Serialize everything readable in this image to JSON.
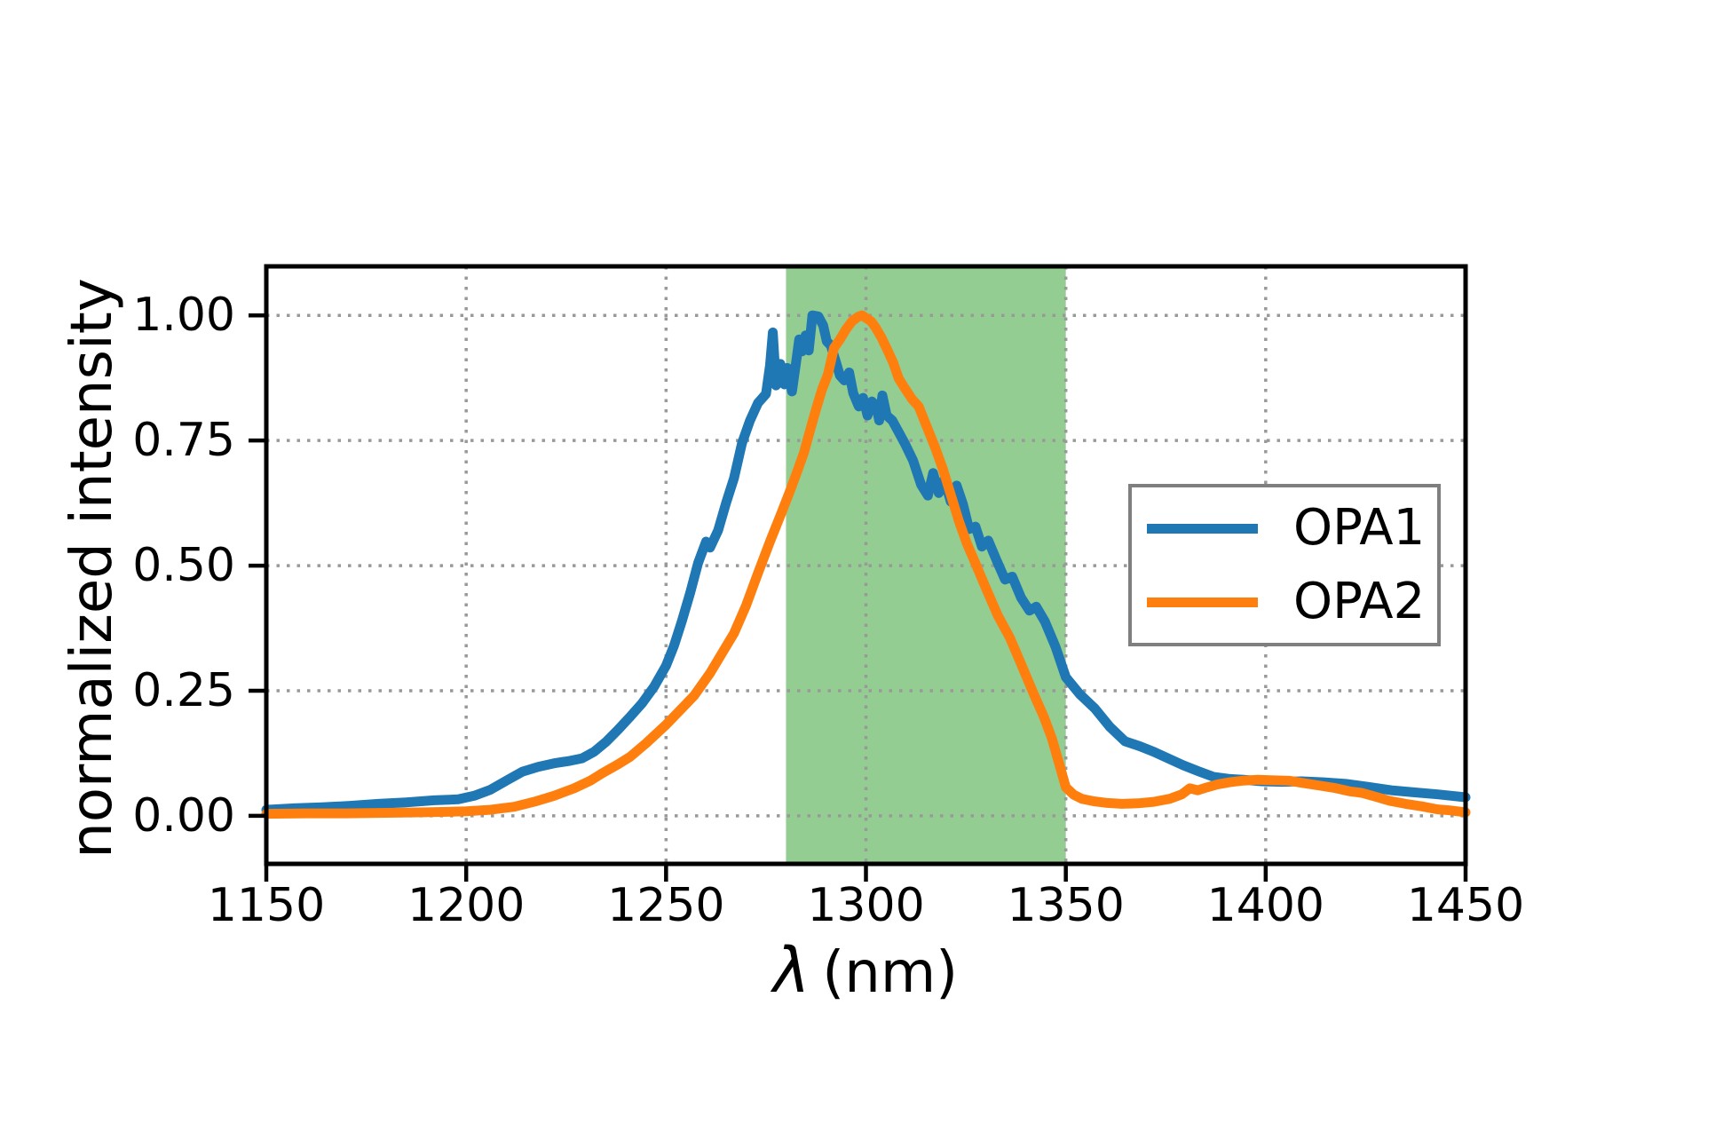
{
  "axes": {
    "xlabel_lambda": "λ",
    "xlabel_unit": "(nm)",
    "xticks": [
      1150,
      1200,
      1250,
      1300,
      1350,
      1400,
      1450
    ],
    "xtick_labels": [
      "1150",
      "1200",
      "1250",
      "1300",
      "1350",
      "1400",
      "1450"
    ],
    "yticks": [
      0,
      0.25,
      0.5,
      0.75,
      1.0
    ],
    "ytick_labels": [
      "0.00",
      "0.25",
      "0.50",
      "0.75",
      "1.00"
    ],
    "spine_color": "#000000",
    "grid_color": "#999999"
  },
  "chart_data": {
    "type": "line",
    "title": "",
    "xlabel": "λ (nm)",
    "ylabel": "normalized intensity",
    "xlim": [
      1150,
      1450
    ],
    "ylim_display": [
      -0.096,
      1.098
    ],
    "grid": "dotted",
    "legend": {
      "position": "center right",
      "entries": [
        "OPA1",
        "OPA2"
      ]
    },
    "shaded_region": {
      "x0": 1280,
      "x1": 1350,
      "color": "#93cd92"
    },
    "series": [
      {
        "name": "OPA1",
        "color": "#1f77b4",
        "points": [
          [
            1150,
            0.012
          ],
          [
            1157,
            0.015
          ],
          [
            1164,
            0.017
          ],
          [
            1171,
            0.02
          ],
          [
            1178,
            0.024
          ],
          [
            1185,
            0.027
          ],
          [
            1192,
            0.031
          ],
          [
            1198,
            0.033
          ],
          [
            1202,
            0.04
          ],
          [
            1206,
            0.052
          ],
          [
            1210,
            0.07
          ],
          [
            1214,
            0.088
          ],
          [
            1218,
            0.098
          ],
          [
            1222,
            0.105
          ],
          [
            1226,
            0.11
          ],
          [
            1229,
            0.115
          ],
          [
            1232,
            0.128
          ],
          [
            1235,
            0.148
          ],
          [
            1238,
            0.172
          ],
          [
            1241,
            0.198
          ],
          [
            1244,
            0.225
          ],
          [
            1247,
            0.258
          ],
          [
            1250,
            0.3
          ],
          [
            1252,
            0.34
          ],
          [
            1254,
            0.39
          ],
          [
            1256,
            0.445
          ],
          [
            1258,
            0.505
          ],
          [
            1260,
            0.548
          ],
          [
            1261,
            0.536
          ],
          [
            1263,
            0.57
          ],
          [
            1265,
            0.625
          ],
          [
            1267,
            0.675
          ],
          [
            1269,
            0.745
          ],
          [
            1271,
            0.79
          ],
          [
            1273,
            0.825
          ],
          [
            1275,
            0.843
          ],
          [
            1276,
            0.9
          ],
          [
            1276.7,
            0.966
          ],
          [
            1277.5,
            0.86
          ],
          [
            1278.6,
            0.903
          ],
          [
            1279.6,
            0.862
          ],
          [
            1280.3,
            0.895
          ],
          [
            1281.5,
            0.848
          ],
          [
            1282.5,
            0.905
          ],
          [
            1283.3,
            0.952
          ],
          [
            1284,
            0.928
          ],
          [
            1284.9,
            0.96
          ],
          [
            1285.7,
            0.93
          ],
          [
            1286.6,
            1.0
          ],
          [
            1288.1,
            0.998
          ],
          [
            1289.3,
            0.98
          ],
          [
            1290.2,
            0.948
          ],
          [
            1291.2,
            0.94
          ],
          [
            1292.3,
            0.912
          ],
          [
            1293.5,
            0.88
          ],
          [
            1294.6,
            0.87
          ],
          [
            1295.8,
            0.886
          ],
          [
            1296.8,
            0.845
          ],
          [
            1298.2,
            0.818
          ],
          [
            1299.3,
            0.835
          ],
          [
            1300.4,
            0.8
          ],
          [
            1301.5,
            0.828
          ],
          [
            1302.6,
            0.818
          ],
          [
            1303.3,
            0.79
          ],
          [
            1304.1,
            0.84
          ],
          [
            1305.2,
            0.8
          ],
          [
            1306.6,
            0.79
          ],
          [
            1308.1,
            0.768
          ],
          [
            1309.8,
            0.743
          ],
          [
            1311.8,
            0.71
          ],
          [
            1313.8,
            0.662
          ],
          [
            1315.5,
            0.64
          ],
          [
            1316.8,
            0.685
          ],
          [
            1318.2,
            0.645
          ],
          [
            1319.6,
            0.672
          ],
          [
            1321.2,
            0.628
          ],
          [
            1322.7,
            0.66
          ],
          [
            1324.3,
            0.622
          ],
          [
            1325.8,
            0.573
          ],
          [
            1327.4,
            0.578
          ],
          [
            1329,
            0.538
          ],
          [
            1330.6,
            0.55
          ],
          [
            1332.6,
            0.512
          ],
          [
            1334.8,
            0.472
          ],
          [
            1336.6,
            0.478
          ],
          [
            1338.8,
            0.436
          ],
          [
            1340.9,
            0.41
          ],
          [
            1342.6,
            0.418
          ],
          [
            1344.8,
            0.388
          ],
          [
            1347.4,
            0.338
          ],
          [
            1350,
            0.277
          ],
          [
            1353.5,
            0.243
          ],
          [
            1357.2,
            0.215
          ],
          [
            1361,
            0.178
          ],
          [
            1364.8,
            0.149
          ],
          [
            1368.5,
            0.139
          ],
          [
            1372,
            0.128
          ],
          [
            1375.8,
            0.114
          ],
          [
            1379.4,
            0.101
          ],
          [
            1383.2,
            0.089
          ],
          [
            1386.9,
            0.078
          ],
          [
            1390.7,
            0.074
          ],
          [
            1394.5,
            0.072
          ],
          [
            1399,
            0.069
          ],
          [
            1404,
            0.068
          ],
          [
            1409,
            0.069
          ],
          [
            1414.5,
            0.067
          ],
          [
            1420,
            0.064
          ],
          [
            1425.5,
            0.058
          ],
          [
            1431.4,
            0.051
          ],
          [
            1437,
            0.047
          ],
          [
            1443,
            0.043
          ],
          [
            1450,
            0.037
          ]
        ]
      },
      {
        "name": "OPA2",
        "color": "#ff7f0e",
        "points": [
          [
            1150,
            0.004
          ],
          [
            1160,
            0.005
          ],
          [
            1170,
            0.005
          ],
          [
            1180,
            0.006
          ],
          [
            1190,
            0.007
          ],
          [
            1200,
            0.009
          ],
          [
            1206,
            0.012
          ],
          [
            1212,
            0.018
          ],
          [
            1217,
            0.028
          ],
          [
            1222,
            0.04
          ],
          [
            1227,
            0.055
          ],
          [
            1231,
            0.07
          ],
          [
            1234,
            0.085
          ],
          [
            1238,
            0.103
          ],
          [
            1241,
            0.118
          ],
          [
            1245,
            0.145
          ],
          [
            1250,
            0.182
          ],
          [
            1254,
            0.215
          ],
          [
            1257,
            0.24
          ],
          [
            1261,
            0.285
          ],
          [
            1264,
            0.325
          ],
          [
            1267,
            0.365
          ],
          [
            1270,
            0.42
          ],
          [
            1273,
            0.485
          ],
          [
            1276,
            0.548
          ],
          [
            1279,
            0.608
          ],
          [
            1281,
            0.649
          ],
          [
            1283,
            0.692
          ],
          [
            1284.5,
            0.726
          ],
          [
            1286,
            0.77
          ],
          [
            1287.5,
            0.812
          ],
          [
            1289,
            0.852
          ],
          [
            1290.5,
            0.882
          ],
          [
            1292,
            0.935
          ],
          [
            1293.5,
            0.952
          ],
          [
            1295,
            0.972
          ],
          [
            1296.5,
            0.988
          ],
          [
            1298,
            0.997
          ],
          [
            1299,
            1.0
          ],
          [
            1300.2,
            0.994
          ],
          [
            1301.3,
            0.988
          ],
          [
            1302.4,
            0.976
          ],
          [
            1303.8,
            0.957
          ],
          [
            1305.3,
            0.932
          ],
          [
            1306.8,
            0.906
          ],
          [
            1308.2,
            0.874
          ],
          [
            1309.6,
            0.856
          ],
          [
            1311.5,
            0.833
          ],
          [
            1313.2,
            0.818
          ],
          [
            1315.2,
            0.778
          ],
          [
            1317.2,
            0.738
          ],
          [
            1319.2,
            0.694
          ],
          [
            1321.2,
            0.642
          ],
          [
            1323.2,
            0.59
          ],
          [
            1325.2,
            0.545
          ],
          [
            1327.2,
            0.508
          ],
          [
            1330,
            0.455
          ],
          [
            1333,
            0.4
          ],
          [
            1336,
            0.356
          ],
          [
            1339,
            0.3
          ],
          [
            1342,
            0.243
          ],
          [
            1344.5,
            0.198
          ],
          [
            1346.5,
            0.155
          ],
          [
            1348.3,
            0.105
          ],
          [
            1350,
            0.057
          ],
          [
            1352,
            0.042
          ],
          [
            1354,
            0.034
          ],
          [
            1357,
            0.029
          ],
          [
            1360,
            0.026
          ],
          [
            1364,
            0.024
          ],
          [
            1368,
            0.025
          ],
          [
            1372,
            0.028
          ],
          [
            1376,
            0.034
          ],
          [
            1379,
            0.043
          ],
          [
            1381,
            0.055
          ],
          [
            1383,
            0.051
          ],
          [
            1385,
            0.056
          ],
          [
            1388,
            0.063
          ],
          [
            1391,
            0.067
          ],
          [
            1394,
            0.07
          ],
          [
            1398,
            0.072
          ],
          [
            1402,
            0.071
          ],
          [
            1406,
            0.07
          ],
          [
            1409,
            0.066
          ],
          [
            1413,
            0.061
          ],
          [
            1417,
            0.056
          ],
          [
            1421,
            0.049
          ],
          [
            1424,
            0.046
          ],
          [
            1428,
            0.037
          ],
          [
            1431,
            0.03
          ],
          [
            1435,
            0.024
          ],
          [
            1439,
            0.019
          ],
          [
            1443,
            0.013
          ],
          [
            1446,
            0.011
          ],
          [
            1450,
            0.007
          ]
        ]
      }
    ]
  }
}
